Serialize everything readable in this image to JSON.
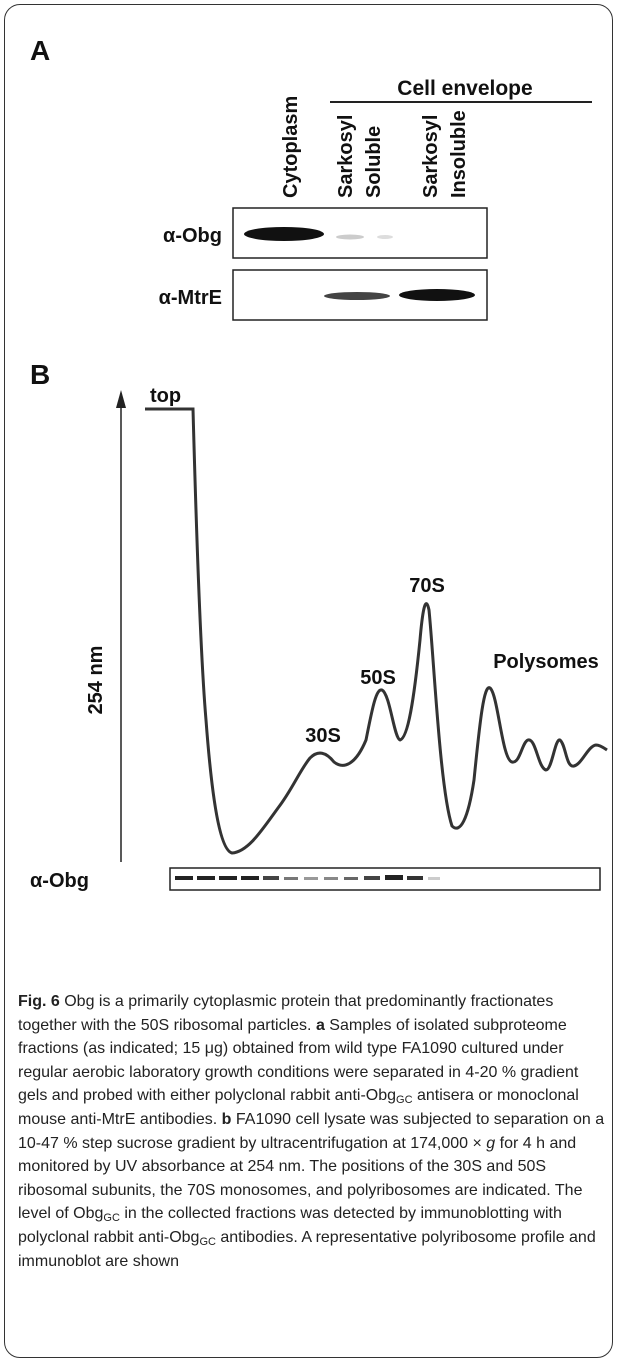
{
  "panel_a": {
    "label": "A",
    "group_label": "Cell envelope",
    "columns": [
      [
        "Cytoplasm"
      ],
      [
        "Sarkosyl",
        "Soluble"
      ],
      [
        "Sarkosyl",
        "Insoluble"
      ]
    ],
    "rows": [
      "α-Obg",
      "α-MtrE"
    ]
  },
  "panel_b": {
    "label": "B",
    "top_label": "top",
    "y_axis_label": "254 nm",
    "peaks": [
      "30S",
      "50S",
      "70S",
      "Polysomes"
    ],
    "blot_label": "α-Obg"
  },
  "caption": {
    "runs": [
      "Fig. 6",
      " Obg is a primarily cytoplasmic protein that predominantly fractionates together with the 50S ribosomal particles. ",
      "a",
      " Samples of isolated subproteome fractions (as indicated; 15 μg) obtained from wild type FA1090 cultured under regular aerobic laboratory growth conditions were separated in 4-20 % gradient gels and probed with either polyclonal rabbit anti-Obg",
      "GC",
      " antisera or monoclonal mouse anti-MtrE antibodies. ",
      "b",
      " FA1090 cell lysate was subjected to separation on a 10-47 % step sucrose gradient by ultracentrifugation at 174,000 × ",
      "g",
      " for 4 h and monitored by UV absorbance at 254 nm. The positions of the 30S and 50S ribosomal subunits, the 70S monosomes, and polyribosomes are indicated. The level of Obg",
      "GC",
      " in the collected fractions was detected by immunoblotting with polyclonal rabbit anti-Obg",
      "GC",
      " antibodies. A representative polyribosome profile and immunoblot are shown"
    ]
  }
}
